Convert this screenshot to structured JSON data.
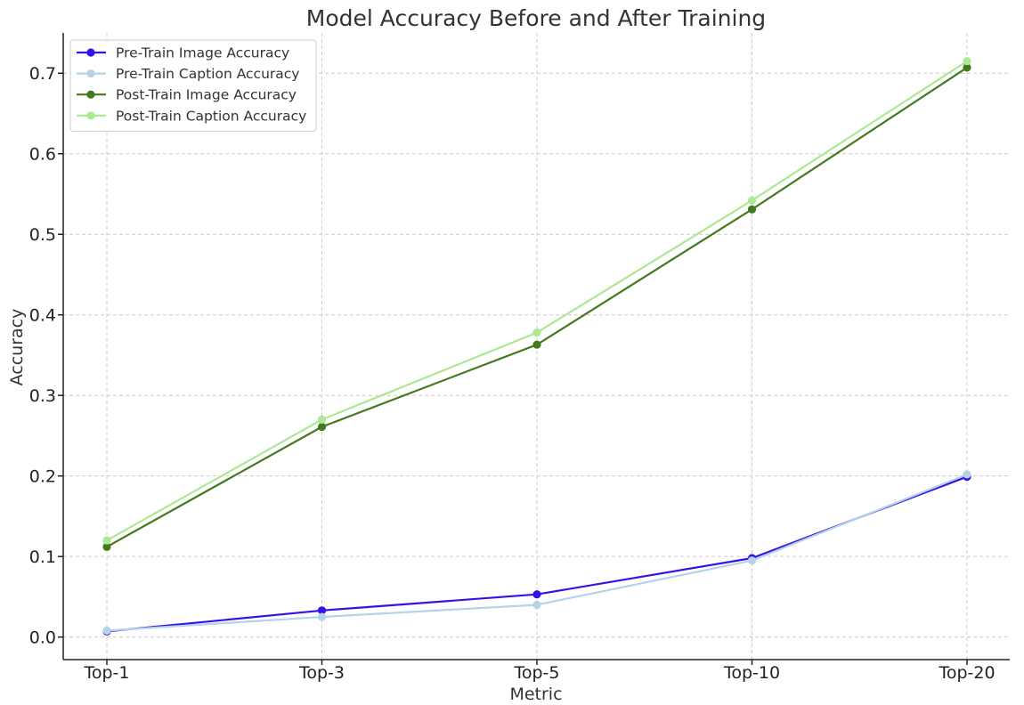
{
  "chart_data": {
    "type": "line",
    "title": "Model Accuracy Before and After Training",
    "xlabel": "Metric",
    "ylabel": "Accuracy",
    "categories": [
      "Top-1",
      "Top-3",
      "Top-5",
      "Top-10",
      "Top-20"
    ],
    "ylim": [
      -0.028,
      0.75
    ],
    "yticks": [
      0.0,
      0.1,
      0.2,
      0.3,
      0.4,
      0.5,
      0.6,
      0.7
    ],
    "ytick_labels": [
      "0.0",
      "0.1",
      "0.2",
      "0.3",
      "0.4",
      "0.5",
      "0.6",
      "0.7"
    ],
    "grid": true,
    "legend_position": "top-left",
    "series": [
      {
        "name": "Pre-Train Image Accuracy",
        "color": "#3314e8",
        "values": [
          0.007,
          0.033,
          0.053,
          0.098,
          0.199
        ]
      },
      {
        "name": "Pre-Train Caption Accuracy",
        "color": "#b4d4e6",
        "values": [
          0.008,
          0.025,
          0.04,
          0.095,
          0.202
        ]
      },
      {
        "name": "Post-Train Image Accuracy",
        "color": "#437a20",
        "values": [
          0.112,
          0.261,
          0.363,
          0.531,
          0.707
        ]
      },
      {
        "name": "Post-Train Caption Accuracy",
        "color": "#ade895",
        "values": [
          0.12,
          0.27,
          0.378,
          0.542,
          0.715
        ]
      }
    ]
  }
}
